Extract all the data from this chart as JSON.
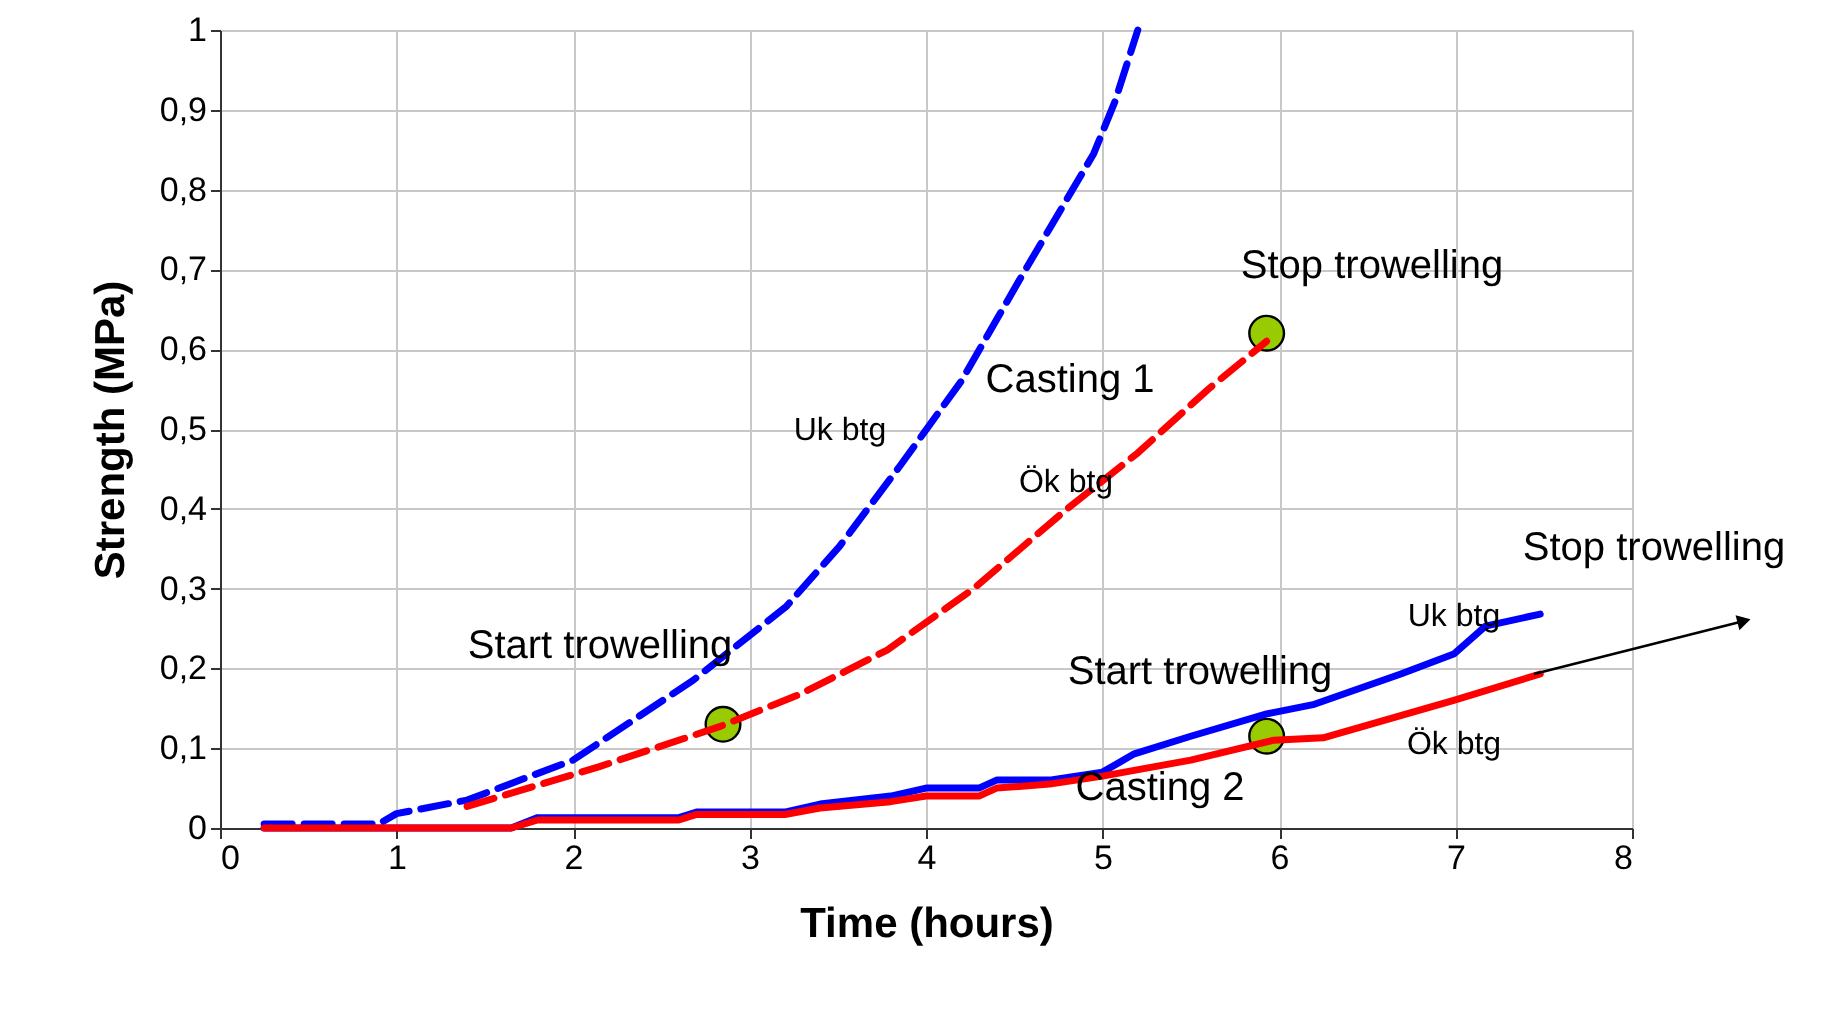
{
  "chart_data": {
    "type": "line",
    "xlabel": "Time (hours)",
    "ylabel": "Strength (MPa)",
    "xlim": [
      0,
      8
    ],
    "xticks": [
      0,
      1,
      2,
      3,
      4,
      5,
      6,
      7,
      8
    ],
    "ylim": [
      0,
      1
    ],
    "yticks": [
      0,
      {
        "value": 0.1,
        "label": "0,1"
      },
      {
        "value": 0.2,
        "label": "0,2"
      },
      {
        "value": 0.3,
        "label": "0,3"
      },
      {
        "value": 0.4,
        "label": "0,4"
      },
      {
        "value": 0.5,
        "label": "0,5"
      },
      {
        "value": 0.6,
        "label": "0,6"
      },
      {
        "value": 0.7,
        "label": "0,7"
      },
      {
        "value": 0.8,
        "label": "0,8"
      },
      {
        "value": 0.9,
        "label": "0,9"
      },
      1
    ],
    "grid": true,
    "marker": "none",
    "series": [
      {
        "color": "#0000ff",
        "line_style": "dashed",
        "x": [
          0.25,
          0.9,
          1.0,
          1.4,
          2.0,
          2.68,
          3.21,
          3.51,
          3.85,
          4.2,
          4.53,
          4.95,
          5.07,
          5.2
        ],
        "values": [
          0.005,
          0.005,
          0.018,
          0.035,
          0.085,
          0.185,
          0.278,
          0.353,
          0.453,
          0.56,
          0.687,
          0.845,
          0.91,
          1.0
        ]
      },
      {
        "color": "#ff0000",
        "line_style": "dashed",
        "x": [
          1.4,
          2.15,
          2.83,
          3.29,
          3.78,
          4.27,
          4.8,
          5.2,
          5.6,
          5.93
        ],
        "values": [
          0.027,
          0.077,
          0.127,
          0.168,
          0.223,
          0.3,
          0.4,
          0.47,
          0.55,
          0.61
        ]
      },
      {
        "color": "#0000ff",
        "line_style": "solid",
        "x": [
          0.25,
          1.65,
          1.8,
          2.6,
          2.7,
          3.2,
          3.4,
          3.8,
          4.0,
          4.3,
          4.4,
          4.7,
          5.0,
          5.18,
          5.5,
          5.93,
          6.2,
          6.69,
          6.99,
          7.17,
          7.48
        ],
        "values": [
          0.0,
          0.0,
          0.013,
          0.013,
          0.02,
          0.02,
          0.03,
          0.04,
          0.05,
          0.05,
          0.06,
          0.06,
          0.07,
          0.093,
          0.115,
          0.143,
          0.155,
          0.193,
          0.218,
          0.253,
          0.268
        ]
      },
      {
        "color": "#ff0000",
        "line_style": "solid",
        "x": [
          0.25,
          1.65,
          1.8,
          2.6,
          2.7,
          3.2,
          3.4,
          3.8,
          4.0,
          4.3,
          4.4,
          4.7,
          5.0,
          5.5,
          5.97,
          6.25,
          6.99,
          7.48
        ],
        "values": [
          0.0,
          0.0,
          0.01,
          0.01,
          0.017,
          0.017,
          0.025,
          0.033,
          0.04,
          0.04,
          0.05,
          0.055,
          0.065,
          0.085,
          0.11,
          0.113,
          0.16,
          0.193
        ]
      },
      {
        "type": "scatter",
        "marker": "circle",
        "color": "#99cc00",
        "x": [
          2.85,
          5.93,
          5.93
        ],
        "values": [
          0.13,
          0.62,
          0.115
        ]
      }
    ],
    "annotations": [
      "Start trowelling",
      "Stop trowelling",
      "Start trowelling",
      "Stop trowelling",
      "Casting 1",
      "Casting 2",
      "Uk btg",
      "Ök btg",
      "Uk btg",
      "Ök btg"
    ]
  }
}
